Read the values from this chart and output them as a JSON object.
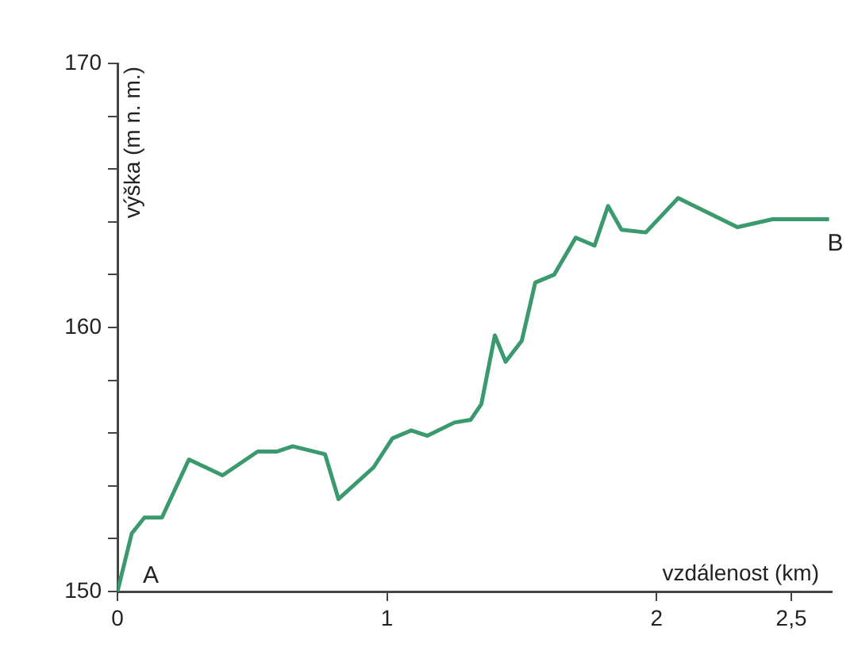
{
  "chart_data": {
    "type": "line",
    "xlabel": "vzdálenost (km)",
    "ylabel": "výška (m n. m.)",
    "x": [
      0,
      0.053,
      0.1,
      0.165,
      0.265,
      0.39,
      0.52,
      0.59,
      0.65,
      0.77,
      0.82,
      0.95,
      1.02,
      1.09,
      1.15,
      1.25,
      1.31,
      1.35,
      1.4,
      1.44,
      1.5,
      1.55,
      1.62,
      1.7,
      1.77,
      1.82,
      1.87,
      1.96,
      2.08,
      2.3,
      2.43,
      2.64
    ],
    "series": [
      {
        "color": "#3a9a6e",
        "values": [
          150,
          152.2,
          152.8,
          152.8,
          155,
          154.4,
          155.3,
          155.3,
          155.5,
          155.2,
          153.5,
          154.7,
          155.8,
          156.1,
          155.9,
          156.4,
          156.5,
          157.1,
          159.7,
          158.7,
          159.5,
          161.7,
          162,
          163.4,
          163.1,
          164.6,
          163.7,
          163.6,
          164.9,
          163.8,
          164.1,
          164.1
        ]
      }
    ],
    "xlim": [
      0,
      2.65
    ],
    "xticks": [
      0,
      1,
      2,
      {
        "value": 2.5,
        "label": "2,5"
      }
    ],
    "ylim": [
      150,
      170
    ],
    "yticks": [
      150,
      {
        "value": 152,
        "label": null
      },
      {
        "value": 154,
        "label": null
      },
      {
        "value": 156,
        "label": null
      },
      {
        "value": 158,
        "label": null
      },
      160,
      {
        "value": 162,
        "label": null
      },
      {
        "value": 164,
        "label": null
      },
      {
        "value": 166,
        "label": null
      },
      {
        "value": 168,
        "label": null
      },
      170
    ],
    "grid": false,
    "legend": false,
    "marker": "none",
    "line_style": "solid",
    "annotations": [
      {
        "text": "A",
        "x": 0,
        "y": 150
      },
      {
        "text": "B",
        "x": 2.64,
        "y": 164.1
      }
    ]
  }
}
